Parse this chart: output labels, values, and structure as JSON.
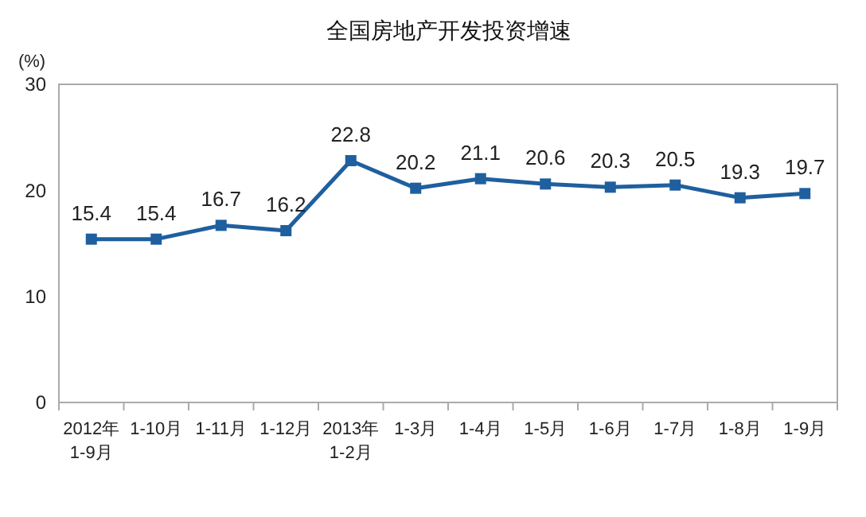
{
  "chart_data": {
    "type": "line",
    "title": "全国房地产开发投资增速",
    "ylabel": "(%)",
    "categories": [
      "2012年\n1-9月",
      "1-10月",
      "1-11月",
      "1-12月",
      "2013年\n1-2月",
      "1-3月",
      "1-4月",
      "1-5月",
      "1-6月",
      "1-7月",
      "1-8月",
      "1-9月"
    ],
    "series": [
      {
        "color": "#1f5f9f",
        "values": [
          15.4,
          15.4,
          16.7,
          16.2,
          22.8,
          20.2,
          21.1,
          20.6,
          20.3,
          20.5,
          19.3,
          19.7
        ]
      }
    ],
    "ylim": [
      0,
      30
    ],
    "yticks": [
      0,
      10,
      20,
      30
    ],
    "grid": false,
    "marker": "square",
    "line_style": "solid",
    "data_labels": true
  }
}
